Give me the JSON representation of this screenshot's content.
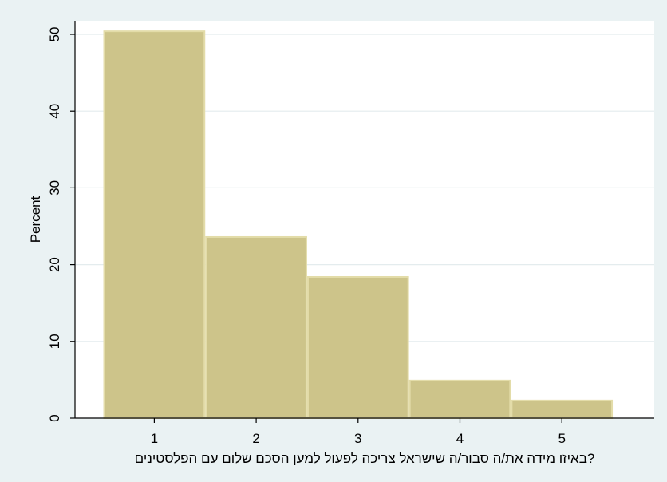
{
  "chart_data": {
    "type": "bar",
    "categories": [
      "1",
      "2",
      "3",
      "4",
      "5"
    ],
    "x": [
      1,
      2,
      3,
      4,
      5
    ],
    "values": [
      50.4,
      23.6,
      18.4,
      4.9,
      2.3
    ],
    "xlabel": "?באיזו מידה את/ה סבור/ה שישראל צריכה לפעול למען הסכם שלום עם הפלסטינים",
    "ylabel": "Percent",
    "ylim": [
      0,
      50
    ],
    "yticks": [
      0,
      10,
      20,
      30,
      40,
      50
    ],
    "xticks": [
      1,
      2,
      3,
      4,
      5
    ],
    "xlim": [
      0.3,
      5.5
    ],
    "grid": "horizontal",
    "bar_color": "#cdc48a",
    "bar_edge_color": "#e3dca9",
    "background": "#eaf2f3",
    "plot_background": "#ffffff",
    "grid_color": "#e4ecee"
  }
}
